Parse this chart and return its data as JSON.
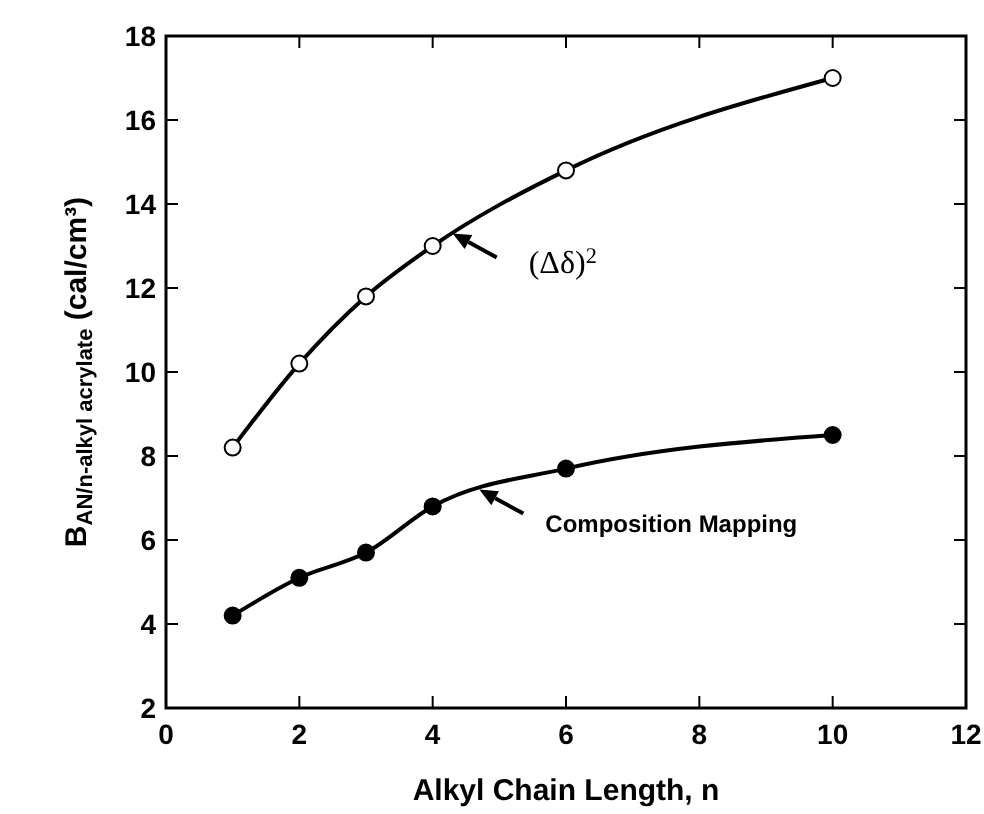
{
  "chart_data": {
    "type": "line",
    "xlabel": "Alkyl Chain Length, n",
    "ylabel": "B$_{AN/n-alkyl acrylate}$ (cal/cm³)",
    "x": [
      1,
      2,
      3,
      4,
      6,
      10
    ],
    "series": [
      {
        "color": "#000000",
        "values": [
          8.2,
          10.2,
          11.8,
          13.0,
          14.8,
          17.0
        ]
      },
      {
        "color": "#000000",
        "values": [
          4.2,
          5.1,
          5.7,
          6.8,
          7.7,
          8.5
        ]
      }
    ],
    "xlim": [
      0,
      12
    ],
    "xticks": [
      0,
      2,
      4,
      6,
      8,
      10,
      12
    ],
    "ylim": [
      2,
      18
    ],
    "yticks": [
      2,
      4,
      6,
      8,
      10,
      12,
      14,
      16,
      18
    ],
    "marker": "circle",
    "line_style": "solid",
    "grid": false,
    "annotations": [
      {
        "text": "(Δδ)$^{2}$",
        "x": 4.3,
        "y": 13.3
      },
      {
        "text": "Composition Mapping",
        "x": 4.7,
        "y": 7.2
      }
    ]
  }
}
